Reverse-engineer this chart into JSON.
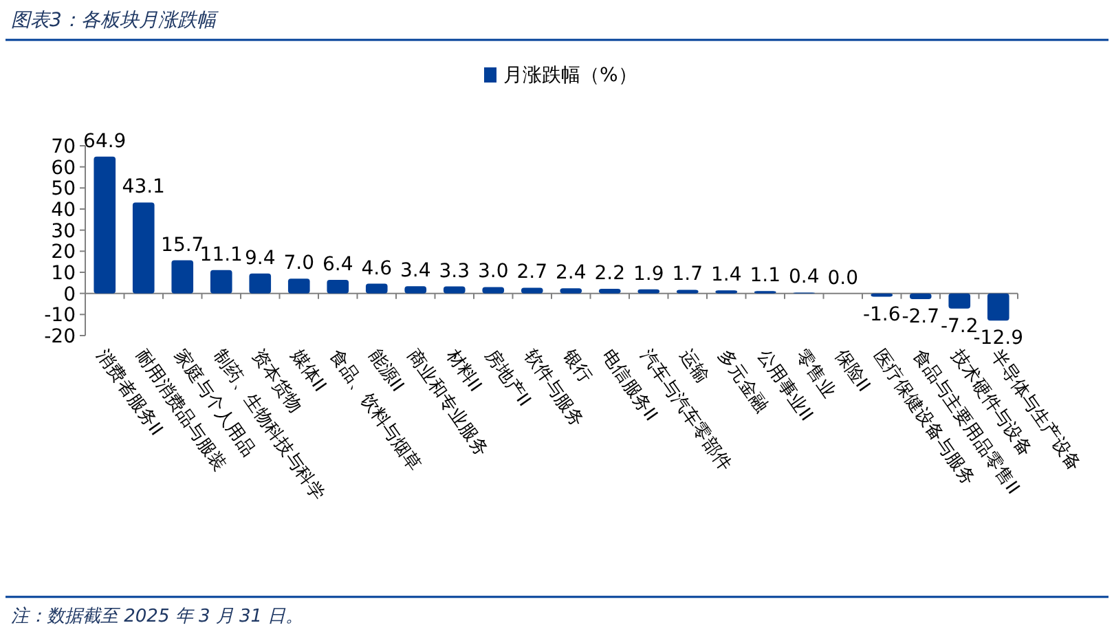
{
  "chart_data": {
    "type": "bar",
    "title": "图表3：各板块月涨跌幅",
    "categories": [
      "消费者服务II",
      "耐用消费品与服装",
      "家庭与个人用品",
      "制药、生物科技与科学",
      "资本货物",
      "媒体II",
      "食品、饮料与烟草",
      "能源II",
      "商业和专业服务",
      "材料II",
      "房地产II",
      "软件与服务",
      "银行",
      "电信服务II",
      "汽车与汽车零部件",
      "运输",
      "多元金融",
      "公用事业II",
      "零售业",
      "保险II",
      "医疗保健设备与服务",
      "食品与主要用品零售II",
      "技术硬件与设备",
      "半导体与生产设备"
    ],
    "series": [
      {
        "name": "月涨跌幅（%）",
        "color": "#003f98",
        "values": [
          64.9,
          43.1,
          15.7,
          11.1,
          9.4,
          7.0,
          6.4,
          4.6,
          3.4,
          3.3,
          3.0,
          2.7,
          2.4,
          2.2,
          1.9,
          1.7,
          1.4,
          1.1,
          0.4,
          0.0,
          -1.6,
          -2.7,
          -7.2,
          -12.9
        ],
        "value_labels": [
          "64.9",
          "43.1",
          "15.7",
          "11.1",
          "9.4",
          "7.0",
          "6.4",
          "4.6",
          "3.4",
          "3.3",
          "3.0",
          "2.7",
          "2.4",
          "2.2",
          "1.9",
          "1.7",
          "1.4",
          "1.1",
          "0.4",
          "0.0",
          "-1.6",
          "-2.7",
          "-7.2",
          "-12.9"
        ]
      }
    ],
    "ylim": [
      -20,
      70
    ],
    "yticks": [
      -20,
      -10,
      0,
      10,
      20,
      30,
      40,
      50,
      60,
      70
    ],
    "legend": "top",
    "annotations": [
      "注：数据截至 2025 年 3 月 31 日。"
    ]
  }
}
